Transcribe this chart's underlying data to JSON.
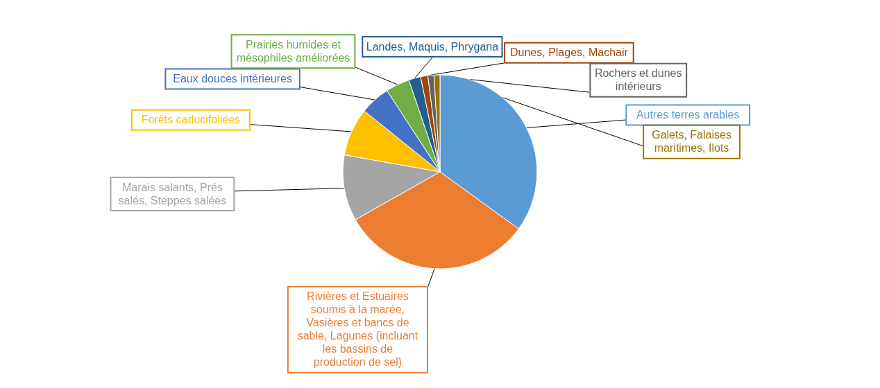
{
  "chart_data": {
    "type": "pie",
    "categories": [
      "Autres terres arables",
      "Rivières et Estuaires soumis à la marée, Vasières et bancs de sable, Lagunes (incluant les bassins de production de sel)",
      "Marais salants, Prés salés, Steppes salées",
      "Forêts caducifoliées",
      "Eaux douces intérieures",
      "Prairies humides et mésophiles améliorées",
      "Landes, Maquis, Phrygana",
      "Dunes, Plages, Machair",
      "Rochers et dunes intérieurs",
      "Galets, Falaises maritimes, Ilots"
    ],
    "values": [
      35,
      31.8,
      11,
      8,
      5,
      4,
      2,
      1.2,
      1,
      1
    ],
    "colors": [
      "#5b9bd5",
      "#ed7d31",
      "#a5a5a5",
      "#ffc000",
      "#4472c4",
      "#70ad47",
      "#255e91",
      "#9e480e",
      "#636363",
      "#997300"
    ]
  }
}
